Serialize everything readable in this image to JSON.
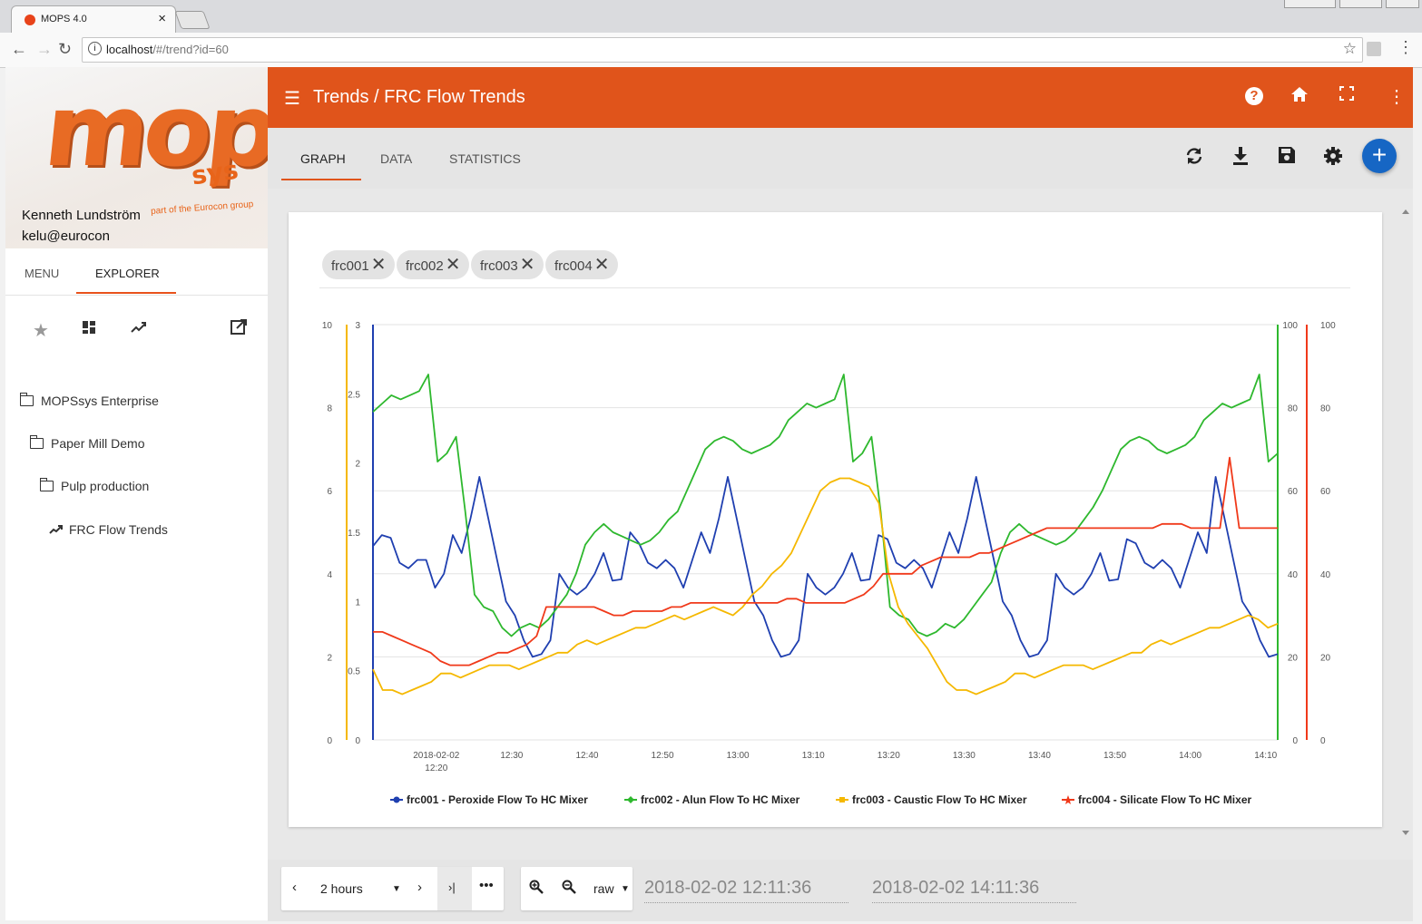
{
  "browser": {
    "tab_title": "MOPS 4.0",
    "url_host": "localhost",
    "url_path": "/#/trend?id=60"
  },
  "sidebar": {
    "user_name": "Kenneth Lundström",
    "user_email": "kelu@eurocon",
    "tabs": [
      "MENU",
      "EXPLORER"
    ],
    "tree": [
      {
        "label": "MOPSsys Enterprise",
        "type": "folder",
        "depth": 0
      },
      {
        "label": "Paper Mill Demo",
        "type": "folder",
        "depth": 1
      },
      {
        "label": "Pulp production",
        "type": "folder",
        "depth": 2
      },
      {
        "label": "FRC Flow Trends",
        "type": "trend",
        "depth": 3
      }
    ]
  },
  "appbar": {
    "title": "Trends / FRC Flow Trends"
  },
  "content_tabs": [
    "GRAPH",
    "DATA",
    "STATISTICS"
  ],
  "chips": [
    "frc001",
    "frc002",
    "frc003",
    "frc004"
  ],
  "bottom": {
    "range": "2 hours",
    "mode": "raw",
    "start": "2018-02-02 12:11:36",
    "end": "2018-02-02 14:11:36"
  },
  "colors": {
    "accent": "#e0541b",
    "frc001": "#1f3fb0",
    "frc002": "#2eb82e",
    "frc003": "#f5b800",
    "frc004": "#f0391a"
  },
  "chart_data": {
    "type": "line",
    "x_ticks": [
      "2018-02-02\n12:20",
      "12:30",
      "12:40",
      "12:50",
      "13:00",
      "13:10",
      "13:20",
      "13:30",
      "13:40",
      "13:50",
      "14:00",
      "14:10"
    ],
    "axes": {
      "y_caustic": {
        "ticks": [
          "0",
          "2",
          "4",
          "6",
          "8",
          "10"
        ],
        "range": [
          0,
          10
        ]
      },
      "y_peroxide": {
        "ticks": [
          "0",
          "0.5",
          "1",
          "1.5",
          "2",
          "2.5",
          "3"
        ],
        "range": [
          0,
          3
        ]
      },
      "y_alun": {
        "ticks": [
          "0",
          "20",
          "40",
          "60",
          "80",
          "100"
        ],
        "range": [
          0,
          100
        ]
      },
      "y_silicate": {
        "ticks": [
          "0",
          "20",
          "40",
          "60",
          "80",
          "100"
        ],
        "range": [
          0,
          100
        ]
      }
    },
    "x_range_minutes": [
      0,
      120
    ],
    "series": [
      {
        "name": "frc001 - Peroxide Flow To HC Mixer",
        "axis": "y_peroxide",
        "marker": "circle",
        "values": [
          1.4,
          1.48,
          1.46,
          1.28,
          1.24,
          1.3,
          1.3,
          1.1,
          1.2,
          1.48,
          1.35,
          1.6,
          1.9,
          1.6,
          1.3,
          1.0,
          0.9,
          0.72,
          0.6,
          0.62,
          0.72,
          1.2,
          1.1,
          1.05,
          1.1,
          1.2,
          1.35,
          1.15,
          1.16,
          1.5,
          1.42,
          1.28,
          1.24,
          1.3,
          1.24,
          1.1,
          1.3,
          1.5,
          1.35,
          1.6,
          1.9,
          1.6,
          1.3,
          1.0,
          0.9,
          0.72,
          0.6,
          0.62,
          0.72,
          1.2,
          1.1,
          1.05,
          1.1,
          1.2,
          1.35,
          1.15,
          1.16,
          1.48,
          1.45,
          1.28,
          1.24,
          1.3,
          1.24,
          1.1,
          1.3,
          1.5,
          1.35,
          1.6,
          1.9,
          1.6,
          1.3,
          1.0,
          0.9,
          0.72,
          0.6,
          0.62,
          0.72,
          1.2,
          1.1,
          1.05,
          1.1,
          1.2,
          1.35,
          1.15,
          1.16,
          1.45,
          1.42,
          1.28,
          1.24,
          1.3,
          1.24,
          1.1,
          1.3,
          1.5,
          1.35,
          1.9,
          1.6,
          1.3,
          1.0,
          0.9,
          0.72,
          0.6,
          0.62
        ]
      },
      {
        "name": "frc002 - Alun Flow To HC Mixer",
        "axis": "y_alun",
        "marker": "diamond",
        "values": [
          79,
          81,
          83,
          82,
          83,
          84,
          88,
          67,
          69,
          73,
          55,
          35,
          32,
          31,
          27,
          25,
          27,
          28,
          27,
          29,
          32,
          35,
          40,
          47,
          50,
          52,
          50,
          49,
          48,
          47,
          48,
          50,
          53,
          55,
          60,
          65,
          70,
          72,
          73,
          72,
          70,
          69,
          70,
          71,
          73,
          77,
          79,
          81,
          80,
          81,
          82,
          88,
          67,
          69,
          73,
          55,
          32,
          30,
          29,
          26,
          25,
          26,
          28,
          27,
          29,
          32,
          35,
          38,
          45,
          50,
          52,
          50,
          49,
          48,
          47,
          48,
          50,
          53,
          56,
          60,
          65,
          70,
          72,
          73,
          72,
          70,
          69,
          70,
          71,
          73,
          77,
          79,
          81,
          80,
          81,
          82,
          88,
          67,
          69
        ]
      },
      {
        "name": "frc003 - Caustic Flow To HC Mixer",
        "axis": "y_caustic",
        "marker": "square",
        "values": [
          1.7,
          1.2,
          1.2,
          1.1,
          1.2,
          1.3,
          1.4,
          1.6,
          1.6,
          1.5,
          1.6,
          1.7,
          1.8,
          1.8,
          1.8,
          1.7,
          1.8,
          1.9,
          2.0,
          2.1,
          2.1,
          2.3,
          2.4,
          2.3,
          2.4,
          2.5,
          2.6,
          2.7,
          2.7,
          2.8,
          2.9,
          3.0,
          2.9,
          3.0,
          3.1,
          3.2,
          3.1,
          3.0,
          3.2,
          3.5,
          3.7,
          4.0,
          4.2,
          4.5,
          5.0,
          5.5,
          6.0,
          6.2,
          6.3,
          6.3,
          6.2,
          6.1,
          5.7,
          4.0,
          3.2,
          2.8,
          2.5,
          2.2,
          1.8,
          1.4,
          1.2,
          1.2,
          1.1,
          1.2,
          1.3,
          1.4,
          1.6,
          1.6,
          1.5,
          1.6,
          1.7,
          1.8,
          1.8,
          1.8,
          1.7,
          1.8,
          1.9,
          2.0,
          2.1,
          2.1,
          2.3,
          2.4,
          2.3,
          2.4,
          2.5,
          2.6,
          2.7,
          2.7,
          2.8,
          2.9,
          3.0,
          2.9,
          2.7,
          2.8
        ]
      },
      {
        "name": "frc004 - Silicate Flow To HC Mixer",
        "axis": "y_silicate",
        "marker": "star",
        "values": [
          26,
          26,
          25,
          24,
          23,
          22,
          21,
          19,
          18,
          18,
          18,
          19,
          20,
          21,
          21,
          22,
          23,
          25,
          32,
          32,
          32,
          32,
          32,
          32,
          31,
          30,
          30,
          31,
          31,
          31,
          31,
          32,
          32,
          33,
          33,
          33,
          33,
          33,
          33,
          33,
          33,
          33,
          33,
          34,
          34,
          33,
          33,
          33,
          33,
          33,
          34,
          35,
          37,
          40,
          40,
          40,
          40,
          42,
          43,
          44,
          44,
          44,
          44,
          45,
          45,
          46,
          47,
          48,
          49,
          50,
          51,
          51,
          51,
          51,
          51,
          51,
          51,
          51,
          51,
          51,
          51,
          51,
          52,
          52,
          52,
          51,
          51,
          51,
          51,
          68,
          51,
          51,
          51,
          51,
          51
        ]
      }
    ]
  }
}
